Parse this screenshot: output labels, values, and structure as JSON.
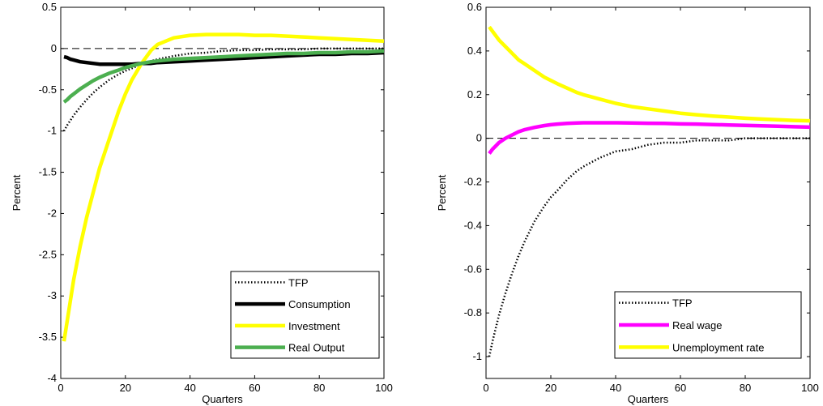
{
  "chart_data": [
    {
      "type": "line",
      "xlabel": "Quarters",
      "ylabel": "Percent",
      "xlim": [
        0,
        100
      ],
      "ylim": [
        -4,
        0.5
      ],
      "xticks": [
        0,
        20,
        40,
        60,
        80,
        100
      ],
      "yticks": [
        -4,
        -3.5,
        -3,
        -2.5,
        -2,
        -1.5,
        -1,
        -0.5,
        0,
        0.5
      ],
      "ytick_labels": [
        "-4",
        "-3.5",
        "-3",
        "-2.5",
        "-2",
        "-1.5",
        "-1",
        "-0.5",
        "0",
        "0.5"
      ],
      "zero_line": true,
      "legend_position": "bottom-right",
      "grid": false,
      "x": [
        1,
        2,
        3,
        4,
        6,
        8,
        10,
        12,
        15,
        18,
        20,
        22,
        25,
        28,
        30,
        35,
        40,
        45,
        50,
        55,
        60,
        65,
        70,
        75,
        80,
        85,
        90,
        95,
        100
      ],
      "series": [
        {
          "name": "TFP",
          "style": "dotted",
          "color": "#000000",
          "values": [
            -1.0,
            -0.93,
            -0.87,
            -0.81,
            -0.71,
            -0.62,
            -0.54,
            -0.47,
            -0.38,
            -0.31,
            -0.27,
            -0.24,
            -0.19,
            -0.15,
            -0.13,
            -0.09,
            -0.06,
            -0.05,
            -0.03,
            -0.02,
            -0.02,
            -0.01,
            -0.01,
            -0.01,
            0.0,
            0.0,
            0.0,
            0.0,
            0.0
          ]
        },
        {
          "name": "Consumption",
          "style": "solid",
          "color": "#000000",
          "values": [
            -0.1,
            -0.11,
            -0.13,
            -0.14,
            -0.16,
            -0.17,
            -0.18,
            -0.19,
            -0.19,
            -0.19,
            -0.19,
            -0.19,
            -0.18,
            -0.18,
            -0.17,
            -0.16,
            -0.15,
            -0.14,
            -0.13,
            -0.12,
            -0.11,
            -0.1,
            -0.09,
            -0.08,
            -0.07,
            -0.07,
            -0.06,
            -0.06,
            -0.05
          ]
        },
        {
          "name": "Investment",
          "style": "solid",
          "color": "#ffff00",
          "values": [
            -3.55,
            -3.3,
            -3.05,
            -2.8,
            -2.4,
            -2.05,
            -1.75,
            -1.45,
            -1.1,
            -0.75,
            -0.55,
            -0.38,
            -0.18,
            -0.02,
            0.05,
            0.13,
            0.16,
            0.17,
            0.17,
            0.17,
            0.16,
            0.16,
            0.15,
            0.14,
            0.13,
            0.12,
            0.11,
            0.1,
            0.09
          ]
        },
        {
          "name": "Real Output",
          "style": "solid",
          "color": "#4caf50",
          "values": [
            -0.65,
            -0.62,
            -0.58,
            -0.55,
            -0.49,
            -0.44,
            -0.39,
            -0.35,
            -0.3,
            -0.26,
            -0.23,
            -0.21,
            -0.18,
            -0.16,
            -0.15,
            -0.13,
            -0.12,
            -0.11,
            -0.1,
            -0.09,
            -0.08,
            -0.07,
            -0.06,
            -0.06,
            -0.05,
            -0.05,
            -0.04,
            -0.04,
            -0.03
          ]
        }
      ]
    },
    {
      "type": "line",
      "xlabel": "Quarters",
      "ylabel": "Percent",
      "xlim": [
        0,
        100
      ],
      "ylim": [
        -1.1,
        0.6
      ],
      "xticks": [
        0,
        20,
        40,
        60,
        80,
        100
      ],
      "yticks": [
        -1,
        -0.8,
        -0.6,
        -0.4,
        -0.2,
        0,
        0.2,
        0.4,
        0.6
      ],
      "ytick_labels": [
        "-1",
        "-0.8",
        "-0.6",
        "-0.4",
        "-0.2",
        "0",
        "0.2",
        "0.4",
        "0.6"
      ],
      "zero_line": true,
      "legend_position": "bottom-right",
      "grid": false,
      "x": [
        1,
        2,
        3,
        4,
        6,
        8,
        10,
        12,
        15,
        18,
        20,
        22,
        25,
        28,
        30,
        35,
        40,
        45,
        50,
        55,
        60,
        65,
        70,
        75,
        80,
        85,
        90,
        95,
        100
      ],
      "series": [
        {
          "name": "TFP",
          "style": "dotted",
          "color": "#000000",
          "values": [
            -1.0,
            -0.93,
            -0.87,
            -0.81,
            -0.71,
            -0.62,
            -0.54,
            -0.47,
            -0.38,
            -0.31,
            -0.27,
            -0.24,
            -0.19,
            -0.15,
            -0.13,
            -0.09,
            -0.06,
            -0.05,
            -0.03,
            -0.02,
            -0.02,
            -0.01,
            -0.01,
            -0.01,
            0.0,
            0.0,
            0.0,
            0.0,
            0.0
          ]
        },
        {
          "name": "Real wage",
          "style": "solid",
          "color": "#ff00ff",
          "values": [
            -0.07,
            -0.05,
            -0.035,
            -0.02,
            0.0,
            0.015,
            0.03,
            0.04,
            0.05,
            0.058,
            0.062,
            0.065,
            0.068,
            0.07,
            0.071,
            0.071,
            0.071,
            0.07,
            0.069,
            0.068,
            0.066,
            0.065,
            0.063,
            0.061,
            0.059,
            0.057,
            0.055,
            0.053,
            0.051
          ]
        },
        {
          "name": "Unemployment rate",
          "style": "solid",
          "color": "#ffff00",
          "values": [
            0.51,
            0.49,
            0.47,
            0.45,
            0.42,
            0.39,
            0.36,
            0.34,
            0.31,
            0.28,
            0.265,
            0.25,
            0.23,
            0.21,
            0.2,
            0.18,
            0.16,
            0.145,
            0.135,
            0.125,
            0.115,
            0.108,
            0.102,
            0.097,
            0.092,
            0.088,
            0.085,
            0.082,
            0.08
          ]
        }
      ]
    }
  ]
}
